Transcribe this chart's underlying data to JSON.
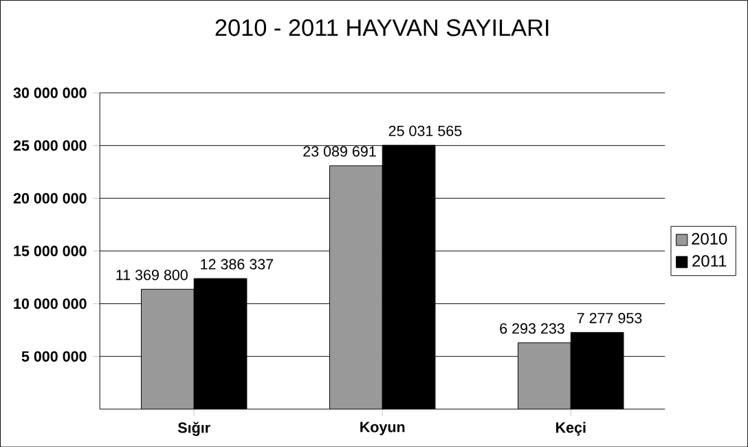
{
  "chart_data": {
    "type": "bar",
    "title": "2010 - 2011 HAYVAN SAYILARI",
    "categories": [
      "Sığır",
      "Koyun",
      "Keçi"
    ],
    "series": [
      {
        "name": "2010",
        "color": "#999999",
        "values": [
          11369800,
          23089691,
          6293233
        ],
        "value_labels": [
          "11 369 800",
          "23 089 691",
          "6 293 233"
        ]
      },
      {
        "name": "2011",
        "color": "#000000",
        "values": [
          12386337,
          25031565,
          7277953
        ],
        "value_labels": [
          "12 386 337",
          "25 031 565",
          "7 277 953"
        ]
      }
    ],
    "ylim": [
      0,
      30000000
    ],
    "yticks": [
      {
        "value": 5000000,
        "label": "5 000 000"
      },
      {
        "value": 10000000,
        "label": "10 000 000"
      },
      {
        "value": 15000000,
        "label": "15 000 000"
      },
      {
        "value": 20000000,
        "label": "20 000 000"
      },
      {
        "value": 25000000,
        "label": "25 000 000"
      },
      {
        "value": 30000000,
        "label": "30 000 000"
      }
    ],
    "grid": "y",
    "legend": "right"
  }
}
